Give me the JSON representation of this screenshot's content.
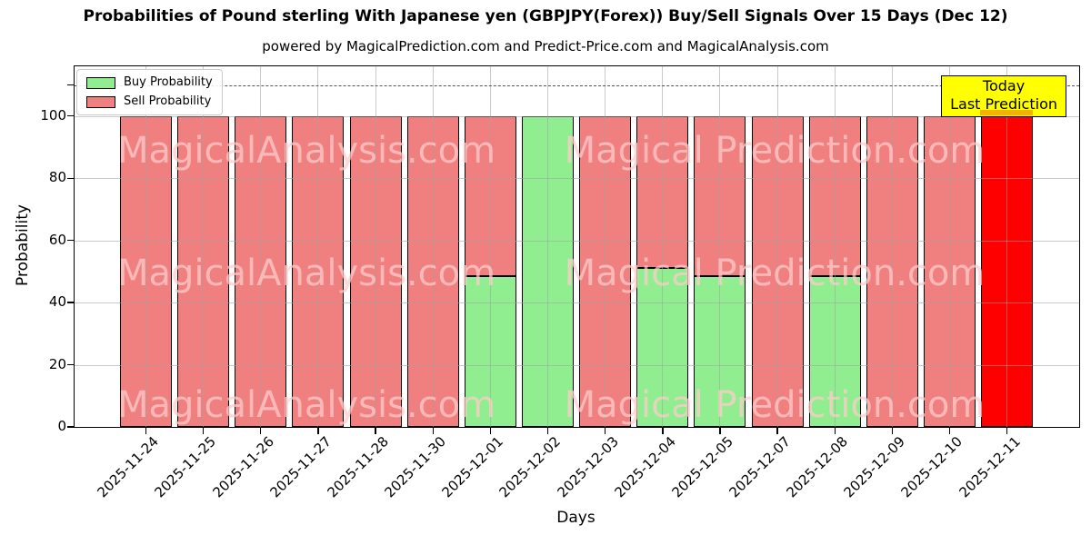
{
  "title": "Probabilities of Pound sterling With Japanese yen (GBPJPY(Forex)) Buy/Sell Signals Over 15 Days (Dec 12)",
  "subtitle": "powered by MagicalPrediction.com and Predict-Price.com and MagicalAnalysis.com",
  "axes": {
    "x_label": "Days",
    "y_label": "Probability",
    "y_ticks": [
      0,
      20,
      40,
      60,
      80,
      100
    ],
    "dashed_line_y": 110
  },
  "legend": {
    "items": [
      {
        "label": "Buy Probability",
        "color": "#90ee90"
      },
      {
        "label": "Sell Probability",
        "color": "#f08080"
      }
    ]
  },
  "annotation": {
    "line1": "Today",
    "line2": "Last Prediction",
    "bg_color": "#ffff00"
  },
  "watermarks": [
    "MagicalAnalysis.com",
    "Magical Prediction.com"
  ],
  "colors": {
    "buy": "#90ee90",
    "sell": "#f08080",
    "today_bar": "#ff0000",
    "annotation_bg": "#ffff00",
    "grid": "#a0a0a0",
    "dashed": "#555555"
  },
  "chart_data": {
    "type": "bar",
    "stacked": true,
    "title": "Probabilities of Pound sterling With Japanese yen (GBPJPY(Forex)) Buy/Sell Signals Over 15 Days (Dec 12)",
    "xlabel": "Days",
    "ylabel": "Probability",
    "ylim": [
      0,
      116
    ],
    "grid": true,
    "legend_position": "upper left",
    "dashed_reference_line": 110,
    "categories": [
      "2025-11-24",
      "2025-11-25",
      "2025-11-26",
      "2025-11-27",
      "2025-11-28",
      "2025-11-30",
      "2025-12-01",
      "2025-12-02",
      "2025-12-03",
      "2025-12-04",
      "2025-12-05",
      "2025-12-07",
      "2025-12-08",
      "2025-12-09",
      "2025-12-10",
      "2025-12-11"
    ],
    "series": [
      {
        "name": "Buy Probability",
        "color": "#90ee90",
        "values": [
          0,
          0,
          0,
          0,
          0,
          0,
          48.5,
          100,
          0,
          51,
          48.5,
          0,
          48.5,
          0,
          0,
          0
        ]
      },
      {
        "name": "Sell Probability",
        "color": "#f08080",
        "values": [
          100,
          100,
          100,
          100,
          100,
          100,
          51.5,
          0,
          100,
          49,
          51.5,
          100,
          51.5,
          100,
          100,
          100
        ]
      }
    ],
    "today_index": 15,
    "today_color": "#ff0000"
  }
}
